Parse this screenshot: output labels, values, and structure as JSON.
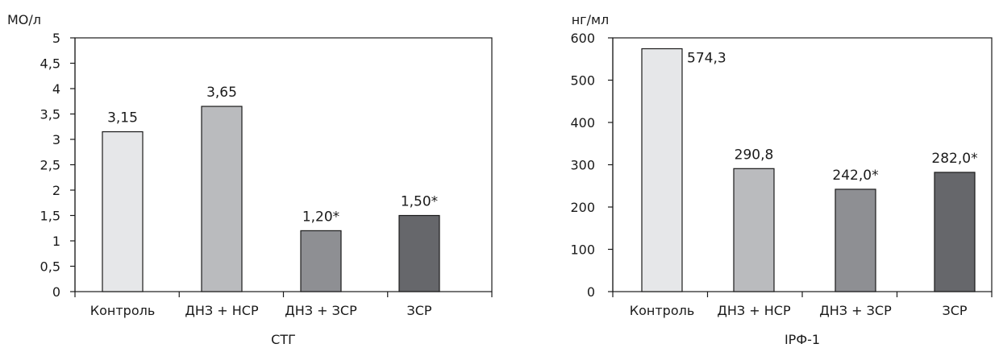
{
  "chart_data": [
    {
      "type": "bar",
      "unit": "МО/л",
      "title": "",
      "xlabel": "СТГ",
      "ylabel": "",
      "categories": [
        "Контроль",
        "ДНЗ + НСР",
        "ДНЗ + ЗСР",
        "ЗСР"
      ],
      "values": [
        3.15,
        3.65,
        1.2,
        1.5
      ],
      "data_labels": [
        "3,15",
        "3,65",
        "1,20*",
        "1,50*"
      ],
      "ylim": [
        0,
        5
      ],
      "yticks": [
        0,
        0.5,
        1,
        1.5,
        2,
        2.5,
        3,
        3.5,
        4,
        4.5,
        5
      ],
      "ytick_labels": [
        "0",
        "0,5",
        "1",
        "1,5",
        "2",
        "2,5",
        "3",
        "3,5",
        "4",
        "4,5",
        "5"
      ],
      "colors": [
        "#e6e7e9",
        "#babbbe",
        "#8e8f93",
        "#66676b"
      ],
      "grid": false,
      "legend": "none"
    },
    {
      "type": "bar",
      "unit": "нг/мл",
      "title": "",
      "xlabel": "ІРФ-1",
      "ylabel": "",
      "categories": [
        "Контроль",
        "ДНЗ + НСР",
        "ДНЗ + ЗСР",
        "ЗСР"
      ],
      "values": [
        574.3,
        290.8,
        242.0,
        282.0
      ],
      "data_labels": [
        "574,3",
        "290,8",
        "242,0*",
        "282,0*"
      ],
      "ylim": [
        0,
        600
      ],
      "yticks": [
        0,
        100,
        200,
        300,
        400,
        500,
        600
      ],
      "ytick_labels": [
        "0",
        "100",
        "200",
        "300",
        "400",
        "500",
        "600"
      ],
      "colors": [
        "#e6e7e9",
        "#babbbe",
        "#8e8f93",
        "#66676b"
      ],
      "grid": false,
      "legend": "none"
    }
  ]
}
